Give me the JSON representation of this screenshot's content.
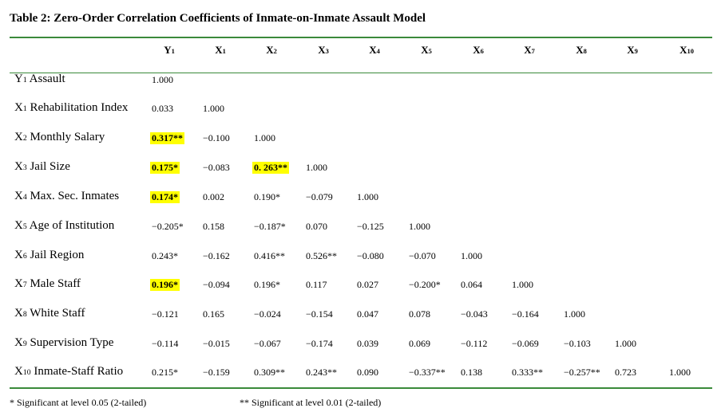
{
  "title": "Table 2: Zero-Order Correlation Coefficients of Inmate-on-Inmate Assault Model",
  "table": {
    "columns": [
      {
        "symbol": "Y",
        "sub": "1"
      },
      {
        "symbol": "X",
        "sub": "1"
      },
      {
        "symbol": "X",
        "sub": "2"
      },
      {
        "symbol": "X",
        "sub": "3"
      },
      {
        "symbol": "X",
        "sub": "4"
      },
      {
        "symbol": "X",
        "sub": "5"
      },
      {
        "symbol": "X",
        "sub": "6"
      },
      {
        "symbol": "X",
        "sub": "7"
      },
      {
        "symbol": "X",
        "sub": "8"
      },
      {
        "symbol": "X",
        "sub": "9"
      },
      {
        "symbol": "X",
        "sub": "10"
      }
    ],
    "rows": [
      {
        "symbol": "Y",
        "sub": "1",
        "name": "Assault",
        "cells": [
          "1.000"
        ]
      },
      {
        "symbol": "X",
        "sub": "1",
        "name": "Rehabilitation Index",
        "cells": [
          "0.033",
          "1.000"
        ]
      },
      {
        "symbol": "X",
        "sub": "2",
        "name": "Monthly Salary",
        "cells": [
          "0.317**",
          "−0.100",
          "1.000"
        ]
      },
      {
        "symbol": "X",
        "sub": "3",
        "name": "Jail Size",
        "cells": [
          "0.175*",
          "−0.083",
          "0. 263**",
          "1.000"
        ]
      },
      {
        "symbol": "X",
        "sub": "4",
        "name": "Max. Sec. Inmates",
        "cells": [
          "0.174*",
          "0.002",
          "0.190*",
          "−0.079",
          "1.000"
        ]
      },
      {
        "symbol": "X",
        "sub": "5",
        "name": "Age of Institution",
        "cells": [
          "−0.205*",
          "0.158",
          "−0.187*",
          "0.070",
          "−0.125",
          "1.000"
        ]
      },
      {
        "symbol": "X",
        "sub": "6",
        "name": "Jail Region",
        "cells": [
          "0.243*",
          "−0.162",
          "0.416**",
          "0.526**",
          "−0.080",
          "−0.070",
          "1.000"
        ]
      },
      {
        "symbol": "X",
        "sub": "7",
        "name": "Male Staff",
        "cells": [
          "0.196*",
          "−0.094",
          "0.196*",
          "0.117",
          "0.027",
          "−0.200*",
          "0.064",
          "1.000"
        ]
      },
      {
        "symbol": "X",
        "sub": "8",
        "name": "White Staff",
        "cells": [
          "−0.121",
          "0.165",
          "−0.024",
          "−0.154",
          "0.047",
          "0.078",
          "−0.043",
          "−0.164",
          "1.000"
        ]
      },
      {
        "symbol": "X",
        "sub": "9",
        "name": "Supervision Type",
        "cells": [
          "−0.114",
          "−0.015",
          "−0.067",
          "−0.174",
          "0.039",
          "0.069",
          "−0.112",
          "−0.069",
          "−0.103",
          "1.000"
        ]
      },
      {
        "symbol": "X",
        "sub": "10",
        "name": "Inmate-Staff Ratio",
        "cells": [
          "0.215*",
          "−0.159",
          "0.309**",
          "0.243**",
          "0.090",
          "−0.337**",
          "0.138",
          "0.333**",
          "−0.257**",
          "0.723",
          "1.000"
        ]
      }
    ],
    "highlighted": [
      [
        2,
        0
      ],
      [
        3,
        0
      ],
      [
        3,
        2
      ],
      [
        4,
        0
      ],
      [
        7,
        0
      ]
    ],
    "highlight_color": "#ffff00"
  },
  "footnotes": [
    "* Significant at level 0.05 (2-tailed)",
    "** Significant at level 0.01 (2-tailed)"
  ]
}
